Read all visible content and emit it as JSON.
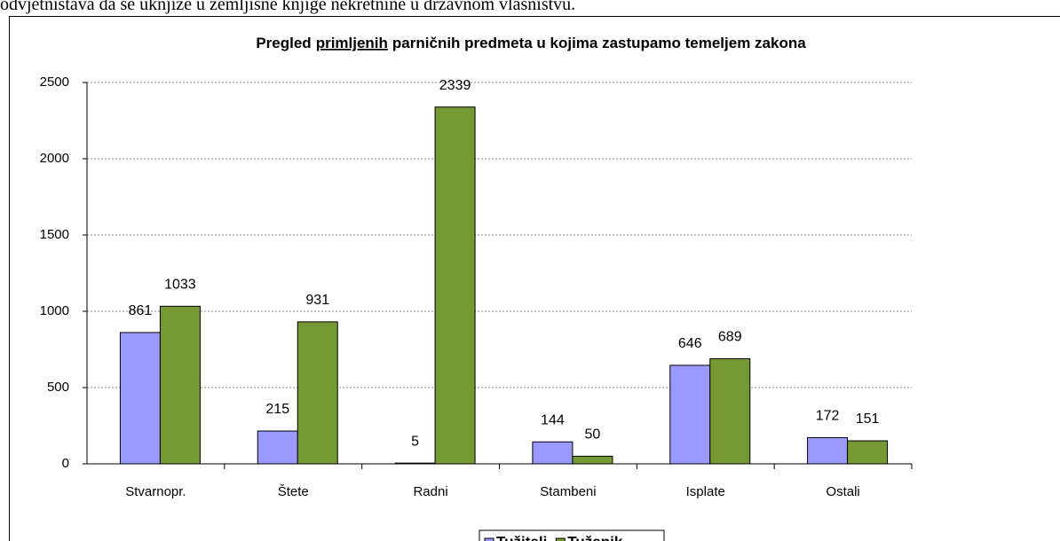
{
  "intro_text": "odvjetništava da se uknjiže u zemljišne knjige nekretnine u državnom vlasništvu.",
  "chart_data": {
    "type": "bar",
    "title": [
      "Pregled",
      "primljenih",
      "parničnih predmeta u kojima zastupamo temeljem zakona"
    ],
    "categories": [
      "Stvarnopr.",
      "Štete",
      "Radni",
      "Stambeni",
      "Isplate",
      "Ostali"
    ],
    "series": [
      {
        "name": "Tužitelj",
        "color": "#9999ff",
        "values": [
          861,
          215,
          5,
          144,
          646,
          172
        ]
      },
      {
        "name": "Tuženik",
        "color": "#779933",
        "values": [
          1033,
          931,
          2339,
          50,
          689,
          151
        ]
      }
    ],
    "ylim": [
      0,
      2500
    ],
    "yticks": [
      0,
      500,
      1000,
      1500,
      2000,
      2500
    ],
    "grid": true,
    "legend": "bottom"
  }
}
